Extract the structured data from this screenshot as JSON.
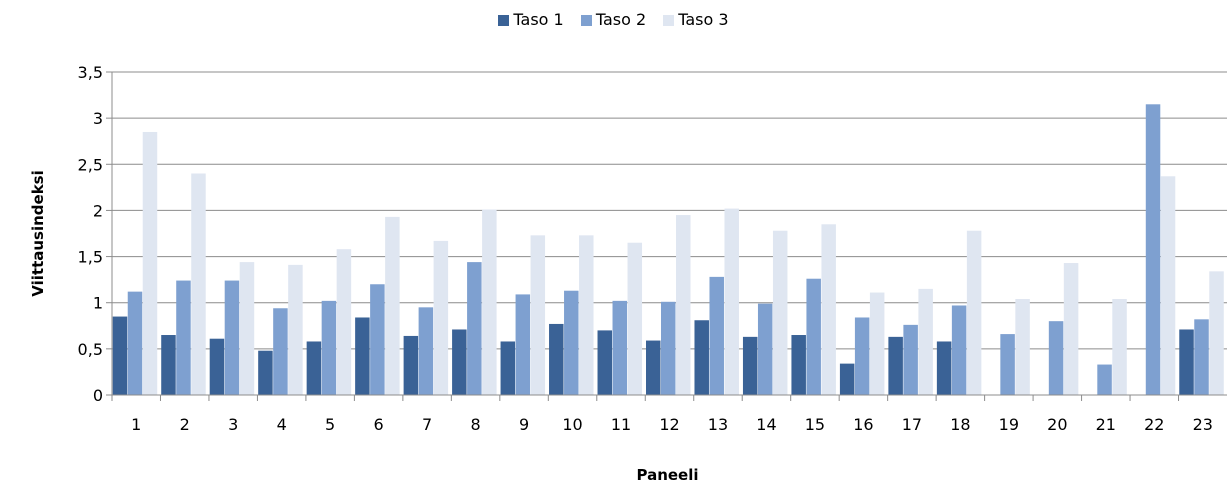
{
  "chart_data": {
    "type": "bar",
    "title": "",
    "xlabel": "Paneeli",
    "ylabel": "Viittausindeksi",
    "categories": [
      "1",
      "2",
      "3",
      "4",
      "5",
      "6",
      "7",
      "8",
      "9",
      "10",
      "11",
      "12",
      "13",
      "14",
      "15",
      "16",
      "17",
      "18",
      "19",
      "20",
      "21",
      "22",
      "23"
    ],
    "series": [
      {
        "name": "Taso 1",
        "color": "#3a6296",
        "values": [
          0.85,
          0.65,
          0.61,
          0.48,
          0.58,
          0.84,
          0.64,
          0.71,
          0.58,
          0.77,
          0.7,
          0.59,
          0.81,
          0.63,
          0.65,
          0.34,
          0.63,
          0.58,
          null,
          null,
          null,
          null,
          0.71
        ]
      },
      {
        "name": "Taso 2",
        "color": "#7ea0d0",
        "values": [
          1.12,
          1.24,
          1.24,
          0.94,
          1.02,
          1.2,
          0.95,
          1.44,
          1.09,
          1.13,
          1.02,
          1.01,
          1.28,
          0.99,
          1.26,
          0.84,
          0.76,
          0.97,
          0.66,
          0.8,
          0.33,
          3.15,
          0.82
        ]
      },
      {
        "name": "Taso 3",
        "color": "#dfe6f1",
        "values": [
          2.85,
          2.4,
          1.44,
          1.41,
          1.58,
          1.93,
          1.67,
          2.01,
          1.73,
          1.73,
          1.65,
          1.95,
          2.02,
          1.78,
          1.85,
          1.11,
          1.15,
          1.78,
          1.04,
          1.43,
          1.04,
          2.37,
          1.34
        ]
      }
    ],
    "yticks": [
      "0",
      "0,5",
      "1",
      "1,5",
      "2",
      "2,5",
      "3",
      "3,5"
    ],
    "ylim": [
      0,
      3.5
    ],
    "grid": true,
    "legend_position": "top"
  }
}
